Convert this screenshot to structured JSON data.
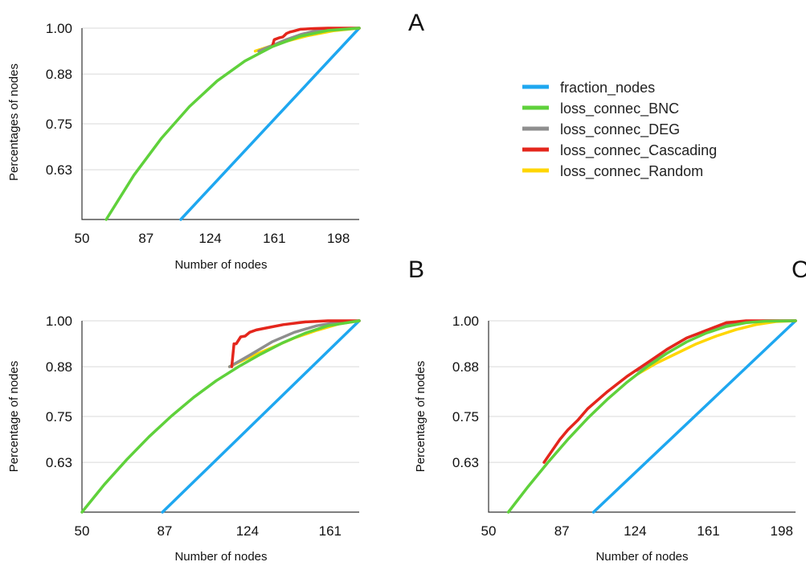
{
  "series_colors": {
    "fraction_nodes": "#1ea7f0",
    "loss_connec_BNC": "#5fd13b",
    "loss_connec_DEG": "#8e8e8e",
    "loss_connec_Cascading": "#e4261c",
    "loss_connec_Random": "#ffd600"
  },
  "legend": [
    "fraction_nodes",
    "loss_connec_BNC",
    "loss_connec_DEG",
    "loss_connec_Cascading",
    "loss_connec_Random"
  ],
  "chart_data": [
    {
      "type": "line",
      "panel": "A",
      "xlabel": "Number of nodes",
      "ylabel": "Percentages of nodes",
      "xticks": [
        "50",
        "87",
        "124",
        "161",
        "198"
      ],
      "yticks": [
        "1.00",
        "0.88",
        "0.75",
        "0.63"
      ],
      "xlim": [
        50,
        210
      ],
      "ylim": [
        0.5,
        1.0
      ],
      "grid": "horizontal",
      "series": [
        {
          "name": "fraction_nodes",
          "x": [
            107,
            210
          ],
          "y": [
            0.5,
            1.0
          ]
        },
        {
          "name": "loss_connec_BNC",
          "x": [
            64,
            80,
            96,
            112,
            128,
            144,
            160,
            176,
            192,
            210
          ],
          "y": [
            0.5,
            0.616,
            0.713,
            0.795,
            0.862,
            0.914,
            0.952,
            0.979,
            0.994,
            1.0
          ]
        },
        {
          "name": "loss_connec_DEG",
          "x": [
            152,
            160,
            168,
            176,
            184,
            192,
            200,
            210
          ],
          "y": [
            0.94,
            0.955,
            0.97,
            0.983,
            0.992,
            0.997,
            0.999,
            1.0
          ]
        },
        {
          "name": "loss_connec_Cascading",
          "x": [
            160,
            161,
            164,
            166,
            168,
            170,
            172,
            176,
            184,
            192,
            200,
            210
          ],
          "y": [
            0.955,
            0.97,
            0.975,
            0.977,
            0.986,
            0.99,
            0.992,
            0.997,
            0.999,
            1.0,
            1.0,
            1.0
          ]
        },
        {
          "name": "loss_connec_Random",
          "x": [
            150,
            165,
            180,
            195,
            210
          ],
          "y": [
            0.94,
            0.962,
            0.98,
            0.993,
            1.0
          ]
        }
      ]
    },
    {
      "type": "line",
      "panel": "B",
      "xlabel": "Number of nodes",
      "ylabel": "Percentage of nodes",
      "xticks": [
        "50",
        "87",
        "124",
        "161"
      ],
      "yticks": [
        "1.00",
        "0.88",
        "0.75",
        "0.63"
      ],
      "xlim": [
        50,
        174
      ],
      "ylim": [
        0.5,
        1.0
      ],
      "grid": "horizontal",
      "series": [
        {
          "name": "fraction_nodes",
          "x": [
            86,
            174
          ],
          "y": [
            0.5,
            1.0
          ]
        },
        {
          "name": "loss_connec_BNC",
          "x": [
            50,
            60,
            70,
            80,
            90,
            100,
            110,
            120,
            130,
            140,
            150,
            160,
            174
          ],
          "y": [
            0.5,
            0.572,
            0.637,
            0.697,
            0.751,
            0.8,
            0.843,
            0.88,
            0.913,
            0.943,
            0.968,
            0.987,
            1.0
          ]
        },
        {
          "name": "loss_connec_DEG",
          "x": [
            116,
            125,
            135,
            145,
            155,
            165,
            174
          ],
          "y": [
            0.88,
            0.91,
            0.945,
            0.97,
            0.987,
            0.997,
            1.0
          ]
        },
        {
          "name": "loss_connec_Cascading",
          "x": [
            117,
            118,
            119,
            121,
            123,
            125,
            128,
            133,
            140,
            150,
            160,
            174
          ],
          "y": [
            0.88,
            0.94,
            0.94,
            0.958,
            0.96,
            0.97,
            0.976,
            0.982,
            0.99,
            0.997,
            1.0,
            1.0
          ]
        },
        {
          "name": "loss_connec_Random",
          "x": [
            116,
            125,
            135,
            145,
            155,
            165,
            174
          ],
          "y": [
            0.88,
            0.905,
            0.93,
            0.955,
            0.975,
            0.992,
            1.0
          ]
        }
      ]
    },
    {
      "type": "line",
      "panel": "C",
      "xlabel": "Number of nodes",
      "ylabel": "Percentage of nodes",
      "xticks": [
        "50",
        "87",
        "124",
        "161",
        "198"
      ],
      "yticks": [
        "1.00",
        "0.88",
        "0.75",
        "0.63"
      ],
      "xlim": [
        50,
        205
      ],
      "ylim": [
        0.5,
        1.0
      ],
      "grid": "horizontal",
      "series": [
        {
          "name": "fraction_nodes",
          "x": [
            103,
            205
          ],
          "y": [
            0.5,
            1.0
          ]
        },
        {
          "name": "loss_connec_BNC",
          "x": [
            60,
            70,
            80,
            90,
            100,
            110,
            120,
            130,
            140,
            150,
            160,
            170,
            180,
            190,
            205
          ],
          "y": [
            0.5,
            0.567,
            0.63,
            0.69,
            0.745,
            0.795,
            0.84,
            0.88,
            0.915,
            0.945,
            0.968,
            0.985,
            0.995,
            0.999,
            1.0
          ]
        },
        {
          "name": "loss_connec_DEG",
          "x": [
            125,
            135,
            140,
            150,
            160,
            170,
            180,
            190,
            205
          ],
          "y": [
            0.87,
            0.905,
            0.925,
            0.955,
            0.975,
            0.99,
            0.998,
            1.0,
            1.0
          ]
        },
        {
          "name": "loss_connec_Cascading",
          "x": [
            78,
            82,
            86,
            90,
            95,
            100,
            110,
            120,
            130,
            140,
            150,
            155,
            160,
            165,
            170,
            180,
            190,
            205
          ],
          "y": [
            0.63,
            0.66,
            0.69,
            0.715,
            0.74,
            0.77,
            0.815,
            0.855,
            0.89,
            0.925,
            0.955,
            0.965,
            0.975,
            0.985,
            0.995,
            1.0,
            1.0,
            1.0
          ]
        },
        {
          "name": "loss_connec_Random",
          "x": [
            125,
            135,
            145,
            155,
            165,
            175,
            185,
            195,
            205
          ],
          "y": [
            0.86,
            0.89,
            0.915,
            0.94,
            0.96,
            0.977,
            0.99,
            0.998,
            1.0
          ]
        }
      ]
    }
  ],
  "panel_labels": {
    "A": "A",
    "B": "B",
    "C": "C"
  }
}
